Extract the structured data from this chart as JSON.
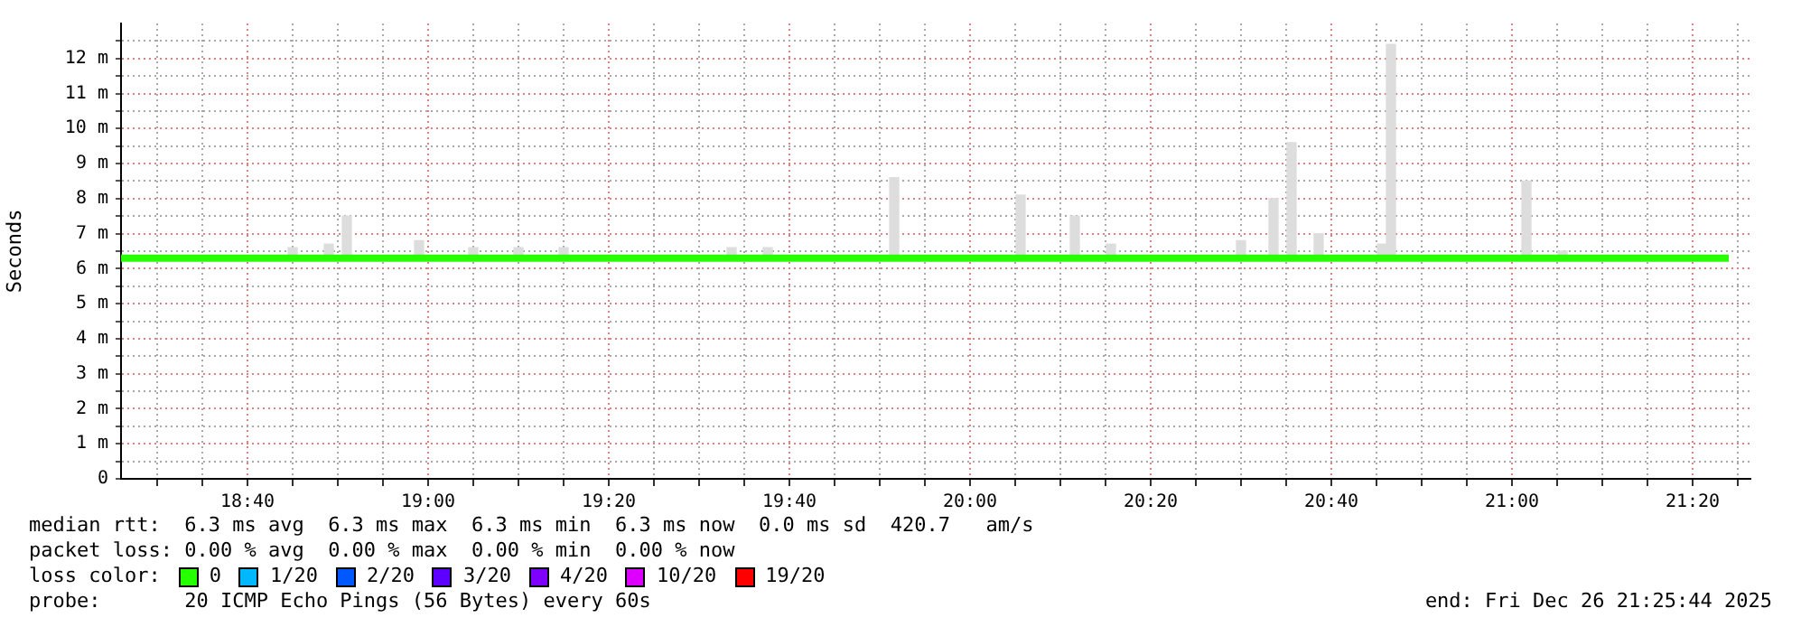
{
  "chart_data": {
    "type": "line",
    "ylabel": "Seconds",
    "legend_title": "loss color:",
    "legend": "bottom",
    "grid": true,
    "marker": "none",
    "line_style": "solid",
    "xlim": [
      18.4333,
      21.44
    ],
    "ylim": [
      0,
      13
    ],
    "xticks": [
      {
        "value": 18.5,
        "label": null
      },
      {
        "value": 18.5833,
        "label": null
      },
      {
        "value": 18.6667,
        "label": "18:40"
      },
      {
        "value": 18.75,
        "label": null
      },
      {
        "value": 18.8333,
        "label": null
      },
      {
        "value": 18.9167,
        "label": null
      },
      {
        "value": 19,
        "label": "19:00"
      },
      {
        "value": 19.0833,
        "label": null
      },
      {
        "value": 19.1667,
        "label": null
      },
      {
        "value": 19.25,
        "label": null
      },
      {
        "value": 19.3333,
        "label": "19:20"
      },
      {
        "value": 19.4167,
        "label": null
      },
      {
        "value": 19.5,
        "label": null
      },
      {
        "value": 19.5833,
        "label": null
      },
      {
        "value": 19.6667,
        "label": "19:40"
      },
      {
        "value": 19.75,
        "label": null
      },
      {
        "value": 19.8333,
        "label": null
      },
      {
        "value": 19.9167,
        "label": null
      },
      {
        "value": 20,
        "label": "20:00"
      },
      {
        "value": 20.0833,
        "label": null
      },
      {
        "value": 20.1667,
        "label": null
      },
      {
        "value": 20.25,
        "label": null
      },
      {
        "value": 20.3333,
        "label": "20:20"
      },
      {
        "value": 20.4167,
        "label": null
      },
      {
        "value": 20.5,
        "label": null
      },
      {
        "value": 20.5833,
        "label": null
      },
      {
        "value": 20.6667,
        "label": "20:40"
      },
      {
        "value": 20.75,
        "label": null
      },
      {
        "value": 20.8333,
        "label": null
      },
      {
        "value": 20.9167,
        "label": null
      },
      {
        "value": 21,
        "label": "21:00"
      },
      {
        "value": 21.0833,
        "label": null
      },
      {
        "value": 21.1667,
        "label": null
      },
      {
        "value": 21.25,
        "label": null
      },
      {
        "value": 21.3333,
        "label": "21:20"
      },
      {
        "value": 21.4167,
        "label": null
      }
    ],
    "yticks": [
      0,
      {
        "value": 0.5,
        "label": null
      },
      {
        "value": 1,
        "label": "1 m"
      },
      {
        "value": 1.5,
        "label": null
      },
      {
        "value": 2,
        "label": "2 m"
      },
      {
        "value": 2.5,
        "label": null
      },
      {
        "value": 3,
        "label": "3 m"
      },
      {
        "value": 3.5,
        "label": null
      },
      {
        "value": 4,
        "label": "4 m"
      },
      {
        "value": 4.5,
        "label": null
      },
      {
        "value": 5,
        "label": "5 m"
      },
      {
        "value": 5.5,
        "label": null
      },
      {
        "value": 6,
        "label": "6 m"
      },
      {
        "value": 6.5,
        "label": null
      },
      {
        "value": 7,
        "label": "7 m"
      },
      {
        "value": 7.5,
        "label": null
      },
      {
        "value": 8,
        "label": "8 m"
      },
      {
        "value": 8.5,
        "label": null
      },
      {
        "value": 9,
        "label": "9 m"
      },
      {
        "value": 9.5,
        "label": null
      },
      {
        "value": 10,
        "label": "10 m"
      },
      {
        "value": 10.5,
        "label": null
      },
      {
        "value": 11,
        "label": "11 m"
      },
      {
        "value": 11.5,
        "label": null
      },
      {
        "value": 12,
        "label": "12 m"
      },
      {
        "value": 12.5,
        "label": null
      }
    ],
    "series": [
      {
        "type": "bar",
        "color": "#dddddd",
        "x": [
          18.75,
          18.8167,
          18.85,
          18.9833,
          19.0833,
          19.1667,
          19.25,
          19.56,
          19.6267,
          19.86,
          20.0933,
          20.1933,
          20.26,
          20.5,
          20.56,
          20.5933,
          20.6433,
          20.76,
          20.7767,
          21.0267,
          21.0933
        ],
        "base": [
          6.3,
          6.3,
          6.3,
          6.3,
          6.3,
          6.3,
          6.3,
          6.3,
          6.3,
          6.3,
          6.3,
          6.3,
          6.3,
          6.3,
          6.3,
          6.3,
          6.3,
          6.3,
          6.3,
          6.3,
          6.3
        ],
        "values": [
          0.3,
          0.4,
          1.2,
          0.5,
          0.3,
          0.3,
          0.3,
          0.3,
          0.3,
          2.3,
          1.8,
          1.2,
          0.4,
          0.5,
          1.7,
          3.3,
          0.7,
          0.4,
          6.1,
          2.2,
          0.2
        ]
      },
      {
        "name": "0",
        "color": "#26ff00",
        "x": [
          18.4333,
          18.75,
          19,
          19.25,
          19.5,
          19.75,
          20,
          20.25,
          20.5,
          20.75,
          21,
          21.25,
          21.4
        ],
        "values": [
          6.3,
          6.3,
          6.3,
          6.3,
          6.3,
          6.3,
          6.3,
          6.3,
          6.3,
          6.3,
          6.3,
          6.3,
          6.3
        ]
      },
      {
        "name": "1/20",
        "color": "#00b8ff"
      },
      {
        "name": "2/20",
        "color": "#0059ff"
      },
      {
        "name": "3/20",
        "color": "#5e00ff"
      },
      {
        "name": "4/20",
        "color": "#7e00ff"
      },
      {
        "name": "10/20",
        "color": "#dd00ff"
      },
      {
        "name": "19/20",
        "color": "#ff0000"
      }
    ],
    "annotations": [
      "median rtt:  6.3 ms avg  6.3 ms max  6.3 ms min  6.3 ms now  0.0 ms sd  420.7   am/s",
      "packet loss: 0.00 % avg  0.00 % max  0.00 % min  0.00 % now",
      "probe:       20 ICMP Echo Pings (56 Bytes) every 60s",
      "end: Fri Dec 26 21:25:44 2025"
    ]
  }
}
